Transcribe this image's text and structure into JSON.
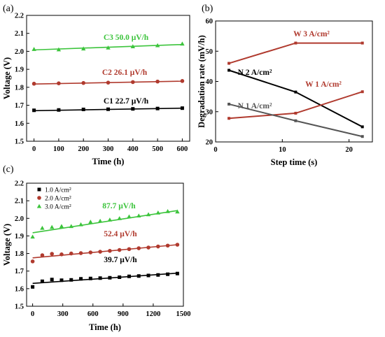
{
  "chart_data": [
    {
      "panel": "(a)",
      "type": "scatter",
      "xlabel": "Time (h)",
      "ylabel": "Voltage (V)",
      "xlim": [
        -30,
        630
      ],
      "ylim": [
        1.5,
        2.2
      ],
      "xticks": [
        0,
        100,
        200,
        300,
        400,
        500,
        600
      ],
      "yticks": [
        1.5,
        1.6,
        1.7,
        1.8,
        1.9,
        2.0,
        2.1,
        2.2
      ],
      "grid": false,
      "series": [
        {
          "name": "C1",
          "label": "22.7 μV/h",
          "color": "#000000",
          "marker": "square",
          "x": [
            0,
            100,
            200,
            300,
            400,
            500,
            600
          ],
          "y": [
            1.672,
            1.674,
            1.677,
            1.678,
            1.68,
            1.682,
            1.684
          ],
          "fit": [
            [
              0,
              1.67
            ],
            [
              600,
              1.684
            ]
          ]
        },
        {
          "name": "C2",
          "label": "26.1 μV/h",
          "color": "#b03a2e",
          "marker": "circle",
          "x": [
            0,
            100,
            200,
            300,
            400,
            500,
            600
          ],
          "y": [
            1.82,
            1.822,
            1.824,
            1.826,
            1.829,
            1.832,
            1.835
          ],
          "fit": [
            [
              0,
              1.818
            ],
            [
              600,
              1.834
            ]
          ]
        },
        {
          "name": "C3",
          "label": "50.0 μV/h",
          "color": "#3cc43c",
          "marker": "triangle",
          "x": [
            0,
            100,
            200,
            300,
            400,
            500,
            600
          ],
          "y": [
            2.012,
            2.01,
            2.015,
            2.02,
            2.027,
            2.033,
            2.042
          ],
          "fit": [
            [
              0,
              2.008
            ],
            [
              600,
              2.038
            ]
          ]
        }
      ]
    },
    {
      "panel": "(b)",
      "type": "line",
      "xlabel": "Step time (s)",
      "ylabel": "Degradation rate (mV/h)",
      "xlim": [
        0,
        23.5
      ],
      "ylim": [
        20,
        60
      ],
      "xticks": [
        0,
        10,
        20
      ],
      "yticks": [
        20,
        30,
        40,
        50,
        60
      ],
      "grid": false,
      "series": [
        {
          "label": "W 3 A/cm²",
          "color": "#b03a2e",
          "x": [
            2,
            12,
            22
          ],
          "y": [
            46,
            52.7,
            52.7
          ]
        },
        {
          "label": "N 2 A/cm²",
          "color": "#000000",
          "x": [
            2,
            12,
            22
          ],
          "y": [
            43.7,
            36.5,
            25
          ]
        },
        {
          "label": "W 1 A/cm²",
          "color": "#b03a2e",
          "x": [
            2,
            12,
            22
          ],
          "y": [
            27.8,
            29.5,
            36.6
          ]
        },
        {
          "label": "N 1 A/cm²",
          "color": "#555555",
          "x": [
            2,
            12,
            22
          ],
          "y": [
            32.5,
            27,
            21.8
          ]
        }
      ]
    },
    {
      "panel": "(c)",
      "type": "scatter",
      "xlabel": "Time (h)",
      "ylabel": "Voltage (V)",
      "xlim": [
        -60,
        1500
      ],
      "ylim": [
        1.5,
        2.2
      ],
      "xticks": [
        0,
        300,
        600,
        900,
        1200,
        1500
      ],
      "yticks": [
        1.5,
        1.6,
        1.7,
        1.8,
        1.9,
        2.0,
        2.1,
        2.2
      ],
      "grid": false,
      "legend_position": "top-left",
      "series": [
        {
          "name": "1.0 A/cm²",
          "label": "39.7 μV/h",
          "color": "#000000",
          "marker": "square",
          "x": [
            0,
            96,
            192,
            288,
            384,
            480,
            576,
            672,
            768,
            864,
            960,
            1056,
            1152,
            1248,
            1344,
            1440
          ],
          "y": [
            1.61,
            1.642,
            1.652,
            1.648,
            1.65,
            1.656,
            1.658,
            1.66,
            1.662,
            1.665,
            1.67,
            1.672,
            1.675,
            1.678,
            1.682,
            1.686
          ],
          "fit": [
            [
              0,
              1.63
            ],
            [
              1440,
              1.688
            ]
          ]
        },
        {
          "name": "2.0 A/cm²",
          "label": "52.4 μV/h",
          "color": "#b03a2e",
          "marker": "circle",
          "x": [
            0,
            96,
            192,
            288,
            384,
            480,
            576,
            672,
            768,
            864,
            960,
            1056,
            1152,
            1248,
            1344,
            1440
          ],
          "y": [
            1.755,
            1.79,
            1.798,
            1.795,
            1.8,
            1.802,
            1.806,
            1.81,
            1.815,
            1.82,
            1.825,
            1.83,
            1.834,
            1.84,
            1.845,
            1.85
          ],
          "fit": [
            [
              0,
              1.775
            ],
            [
              1440,
              1.85
            ]
          ]
        },
        {
          "name": "3.0 A/cm²",
          "label": "87.7 μV/h",
          "color": "#3cc43c",
          "marker": "triangle",
          "x": [
            0,
            96,
            192,
            288,
            384,
            480,
            576,
            672,
            768,
            864,
            960,
            1056,
            1152,
            1248,
            1344,
            1440
          ],
          "y": [
            1.895,
            1.945,
            1.95,
            1.955,
            1.955,
            1.965,
            1.98,
            1.985,
            1.992,
            2.0,
            2.01,
            2.015,
            2.022,
            2.032,
            2.04,
            2.038
          ],
          "fit": [
            [
              0,
              1.918
            ],
            [
              1440,
              2.044
            ]
          ]
        }
      ]
    }
  ]
}
